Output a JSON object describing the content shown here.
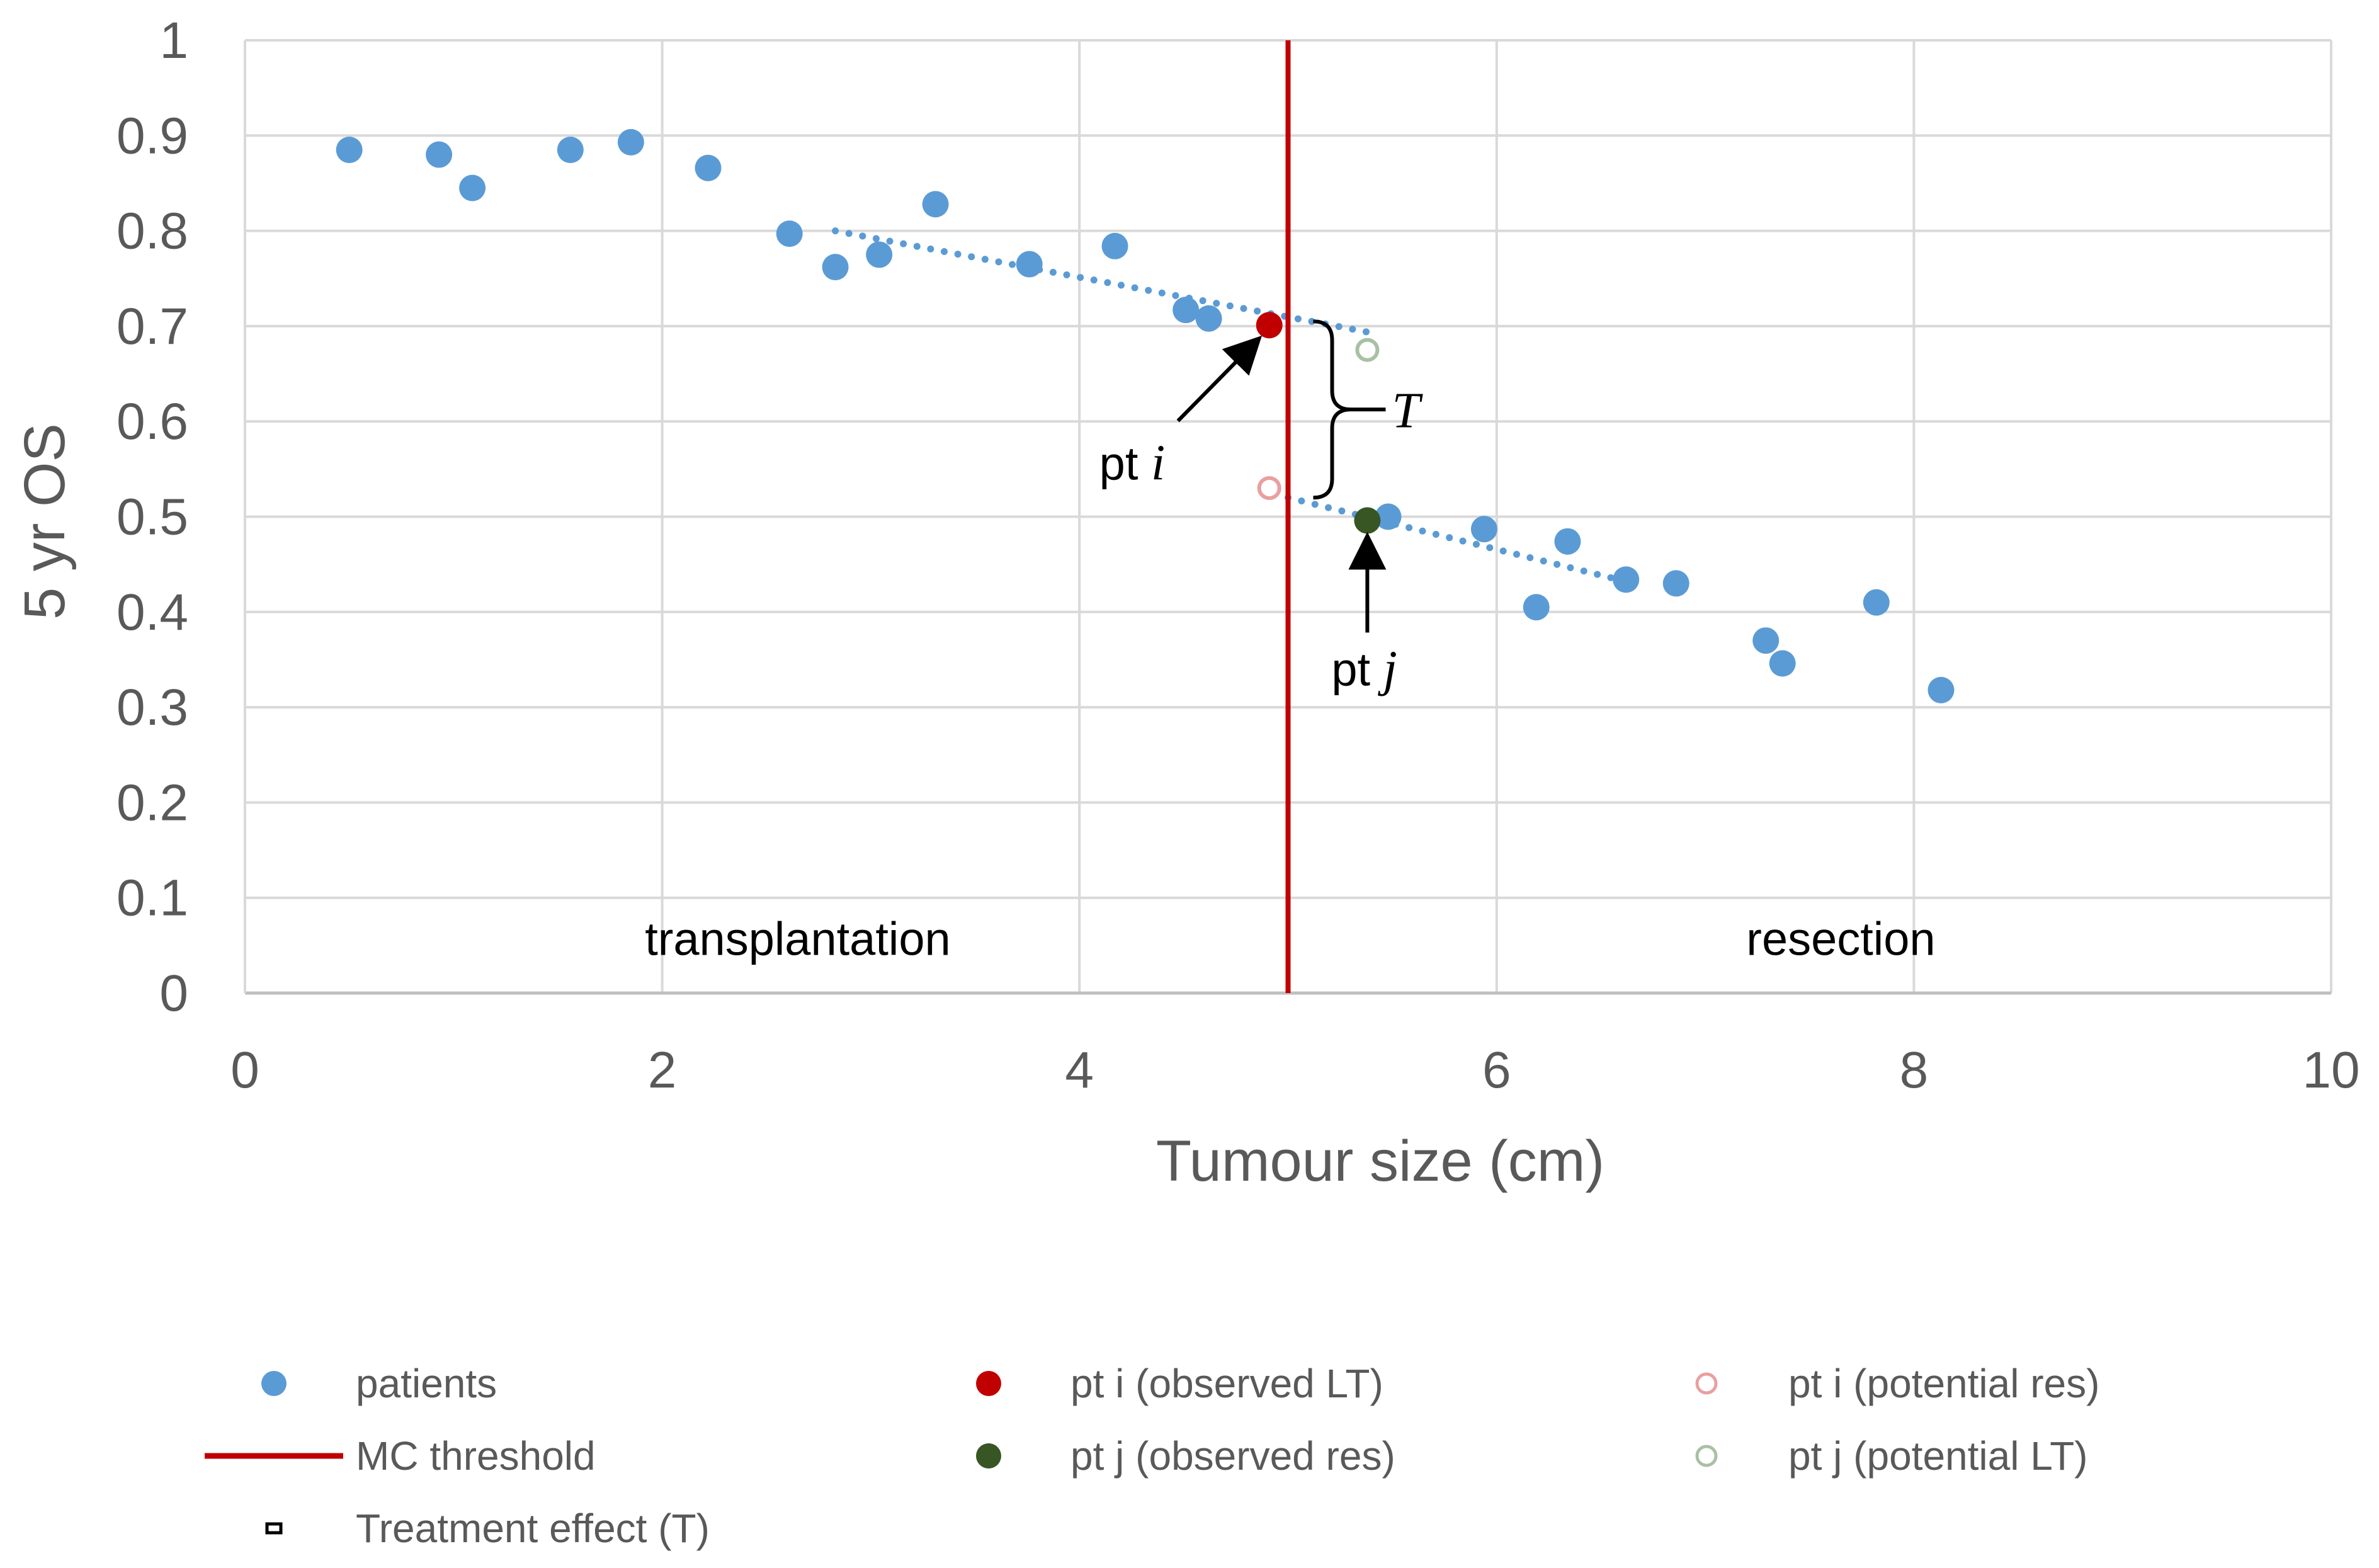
{
  "chart_data": {
    "type": "scatter",
    "title": "",
    "xlabel": "Tumour size (cm)",
    "ylabel": "5 yr OS",
    "xlim": [
      0,
      10
    ],
    "ylim": [
      0,
      1
    ],
    "x_ticks": [
      "0",
      "2",
      "4",
      "6",
      "8",
      "10"
    ],
    "y_ticks": [
      "0",
      "0.1",
      "0.2",
      "0.3",
      "0.4",
      "0.5",
      "0.6",
      "0.7",
      "0.8",
      "0.9",
      "1"
    ],
    "grid": true,
    "colors": {
      "patients": "#5B9BD5",
      "threshold": "#C00000",
      "pt_i_observed": "#C00000",
      "pt_j_observed": "#375623",
      "pt_i_potential": "#E8A0A0",
      "pt_j_potential": "#A9C0A4",
      "gridline": "#D9D9D9",
      "axis": "#BFBFBF"
    },
    "series": [
      {
        "name": "patients",
        "marker": "filled-circle",
        "points": [
          {
            "x": 0.5,
            "y": 0.885
          },
          {
            "x": 0.93,
            "y": 0.88
          },
          {
            "x": 1.09,
            "y": 0.845
          },
          {
            "x": 1.56,
            "y": 0.885
          },
          {
            "x": 1.85,
            "y": 0.893
          },
          {
            "x": 2.22,
            "y": 0.866
          },
          {
            "x": 2.61,
            "y": 0.797
          },
          {
            "x": 2.83,
            "y": 0.762
          },
          {
            "x": 3.04,
            "y": 0.775
          },
          {
            "x": 3.31,
            "y": 0.828
          },
          {
            "x": 3.76,
            "y": 0.765
          },
          {
            "x": 4.17,
            "y": 0.784
          },
          {
            "x": 4.51,
            "y": 0.717
          },
          {
            "x": 4.62,
            "y": 0.708
          },
          {
            "x": 5.48,
            "y": 0.5
          },
          {
            "x": 5.94,
            "y": 0.487
          },
          {
            "x": 6.19,
            "y": 0.405
          },
          {
            "x": 6.34,
            "y": 0.474
          },
          {
            "x": 6.62,
            "y": 0.434
          },
          {
            "x": 6.86,
            "y": 0.43
          },
          {
            "x": 7.29,
            "y": 0.37
          },
          {
            "x": 7.37,
            "y": 0.346
          },
          {
            "x": 7.82,
            "y": 0.41
          },
          {
            "x": 8.13,
            "y": 0.318
          }
        ]
      },
      {
        "name": "pt i (observed LT)",
        "marker": "filled-circle",
        "points": [
          {
            "x": 4.91,
            "y": 0.701
          }
        ]
      },
      {
        "name": "pt j (observed res)",
        "marker": "filled-circle",
        "points": [
          {
            "x": 5.38,
            "y": 0.496
          }
        ]
      },
      {
        "name": "pt i (potential res)",
        "marker": "open-circle",
        "points": [
          {
            "x": 4.91,
            "y": 0.53
          }
        ]
      },
      {
        "name": "pt j (potential LT)",
        "marker": "open-circle",
        "points": [
          {
            "x": 5.38,
            "y": 0.675
          }
        ]
      }
    ],
    "trendlines": [
      {
        "name": "transplantation trend",
        "style": "dotted",
        "x": [
          2.83,
          5.4
        ],
        "y": [
          0.8,
          0.693
        ]
      },
      {
        "name": "resection trend",
        "style": "dotted",
        "x": [
          5.0,
          6.62
        ],
        "y": [
          0.52,
          0.432
        ]
      }
    ],
    "threshold": {
      "name": "MC threshold",
      "x": 5
    },
    "treatment_effect": {
      "label": "T",
      "x": 5,
      "y_low": 0.52,
      "y_high": 0.705
    },
    "annotations": [
      {
        "id": "pt-i",
        "prefix": "pt ",
        "var": "i",
        "x": 4.91,
        "y": 0.701
      },
      {
        "id": "pt-j",
        "prefix": "pt ",
        "var": "j",
        "x": 5.38,
        "y": 0.496
      }
    ],
    "regions": [
      {
        "label": "transplantation",
        "x": 2.65,
        "y": 0.04
      },
      {
        "label": "resection",
        "x": 7.65,
        "y": 0.04
      }
    ],
    "legend": {
      "position": "bottom",
      "entries": [
        {
          "label": "patients",
          "marker": "filled-circle",
          "color": "#5B9BD5"
        },
        {
          "label": "pt i (observed LT)",
          "marker": "filled-circle",
          "color": "#C00000"
        },
        {
          "label": "pt i (potential res)",
          "marker": "open-circle",
          "color": "#E8A0A0"
        },
        {
          "label": "MC threshold",
          "marker": "line",
          "color": "#C00000"
        },
        {
          "label": "pt j (observed res)",
          "marker": "filled-circle",
          "color": "#375623"
        },
        {
          "label": "pt j (potential LT)",
          "marker": "open-circle",
          "color": "#A9C0A4"
        },
        {
          "label": "Treatment effect (T)",
          "marker": "small-box",
          "color": "#000000"
        }
      ]
    }
  }
}
